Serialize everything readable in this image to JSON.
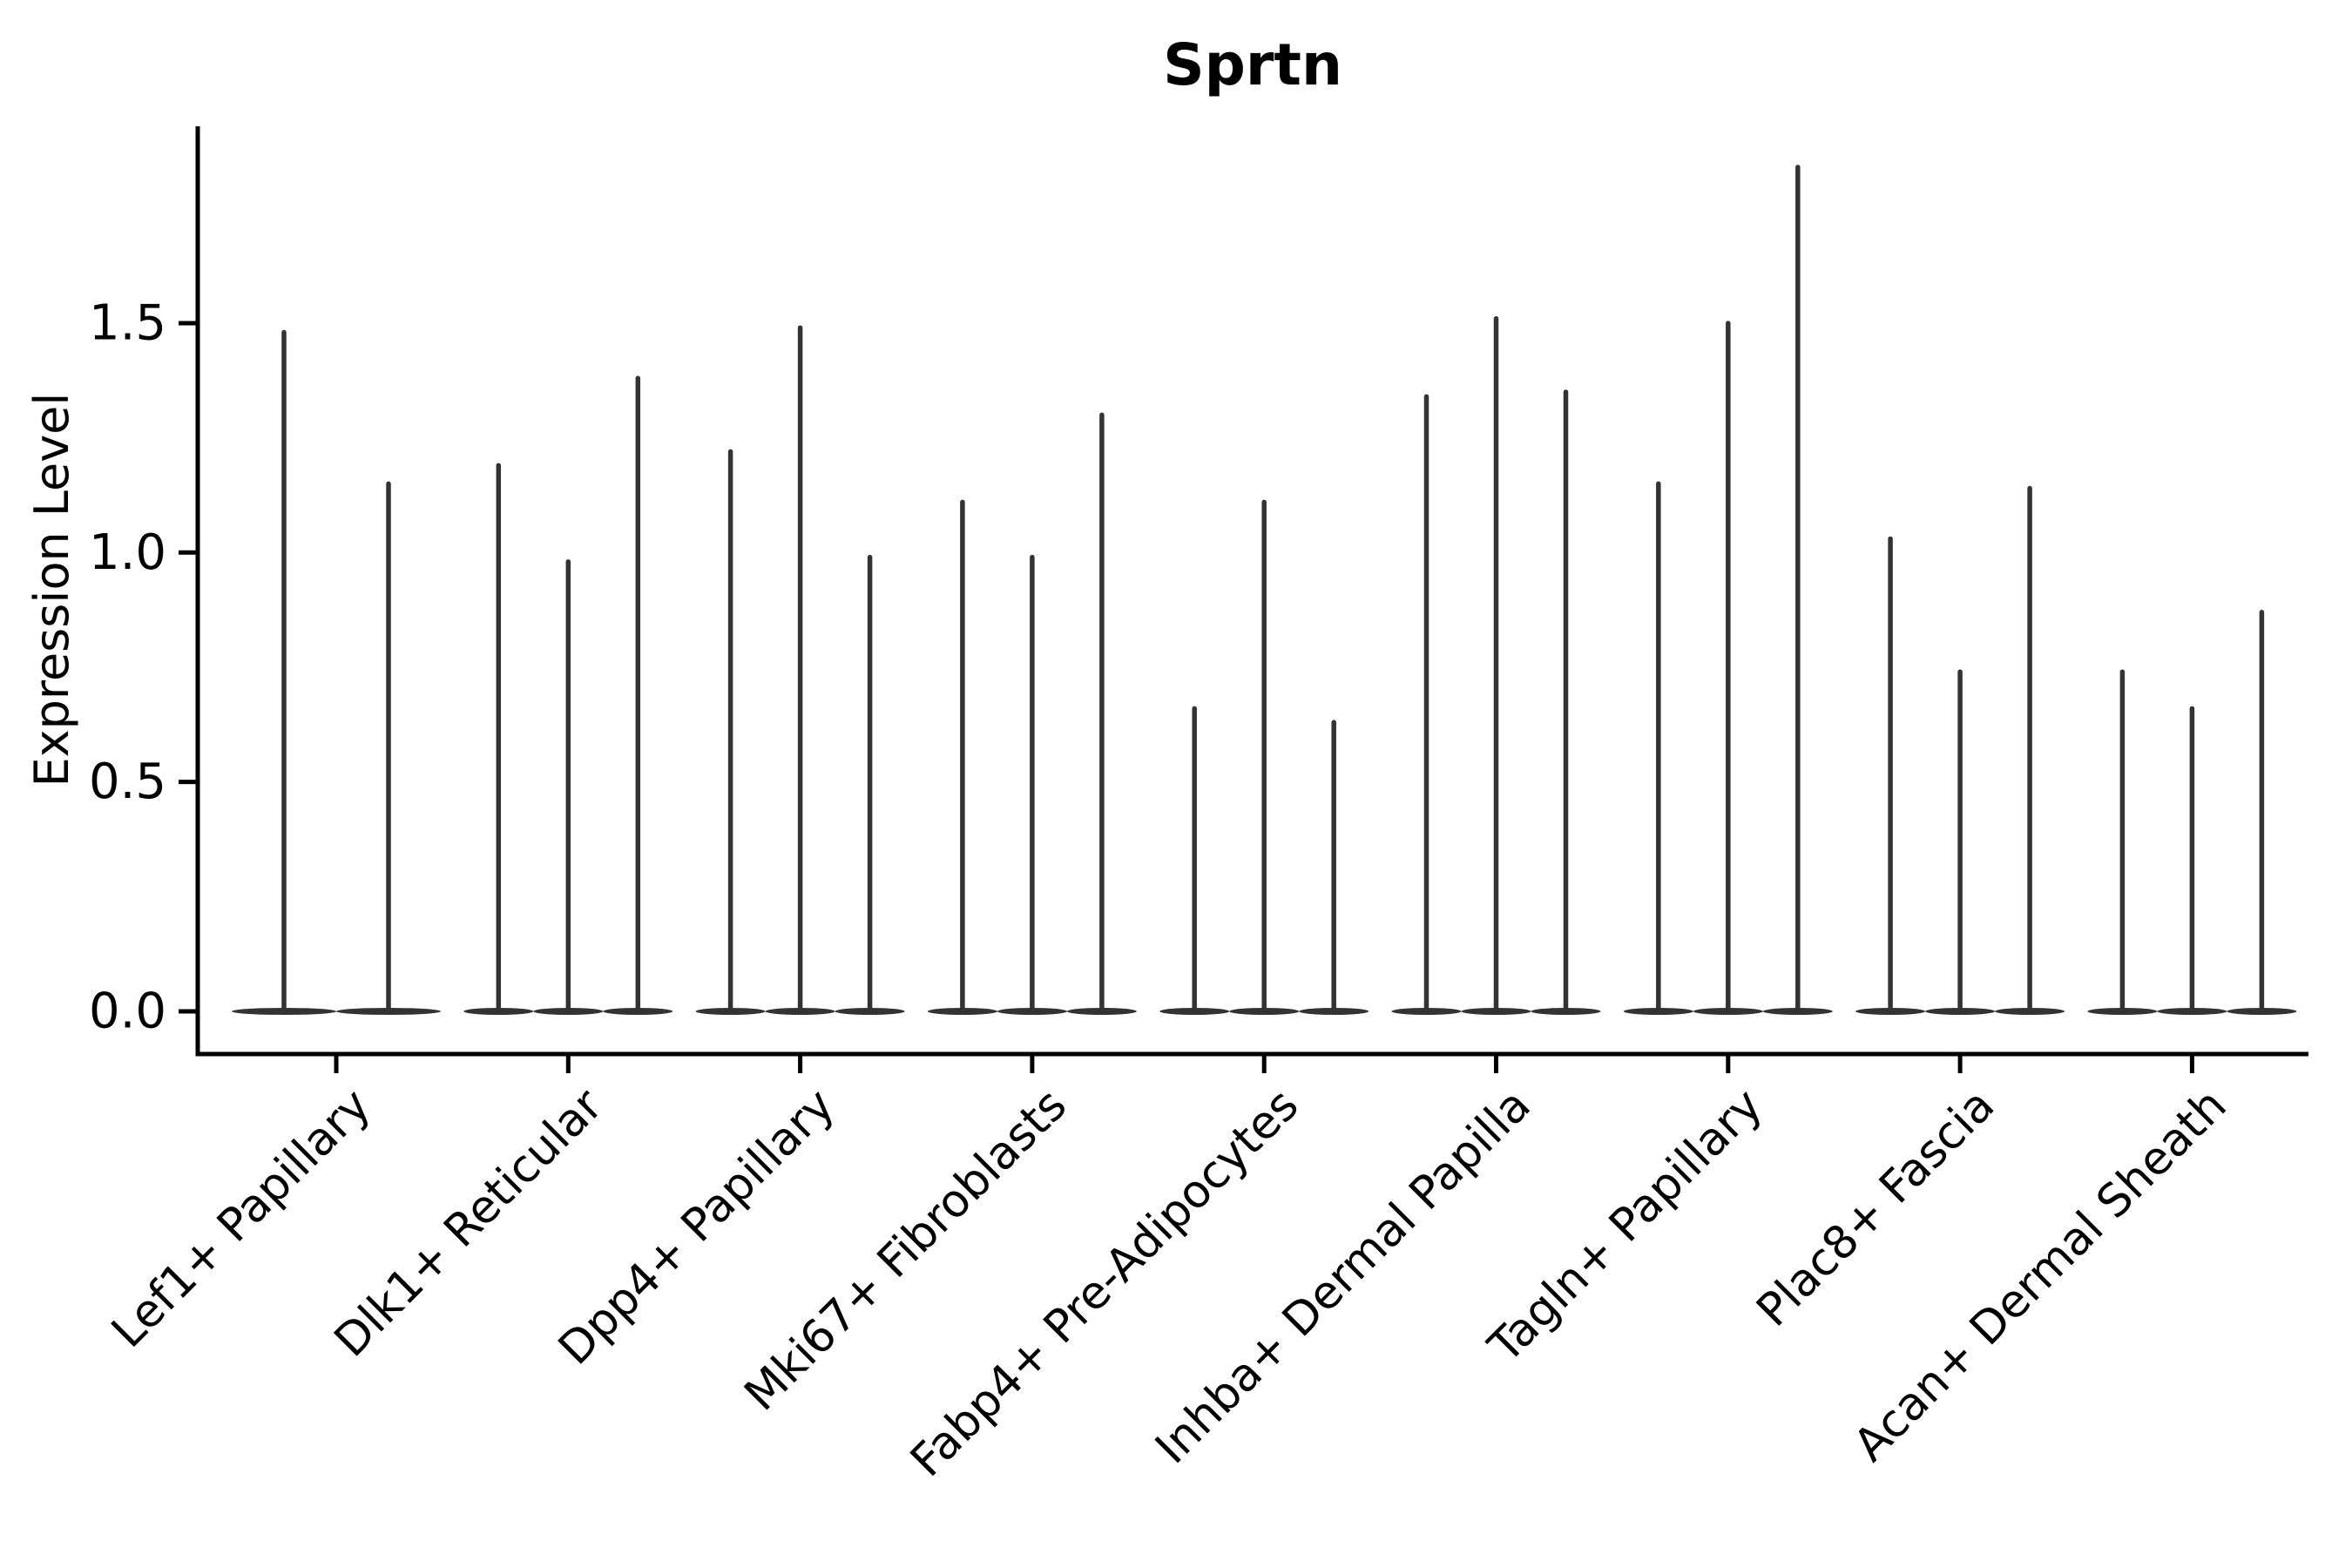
{
  "figure": {
    "title": "Sprtn"
  },
  "chart_data": {
    "type": "violin",
    "title": "Sprtn",
    "xlabel": "",
    "ylabel": "Expression Level",
    "categories": [
      "Lef1+ Papillary",
      "Dlk1+ Reticular",
      "Dpp4+ Papillary",
      "Mki67+ Fibroblasts",
      "Fabp4+ Pre-Adipocytes",
      "Inhba+ Dermal Papilla",
      "Tagln+ Papillary",
      "Plac8+ Fascia",
      "Acan+ Dermal Sheath"
    ],
    "violin_max_values": [
      [
        1.48,
        1.15
      ],
      [
        1.19,
        0.98,
        1.38
      ],
      [
        1.22,
        1.49,
        0.99
      ],
      [
        1.11,
        0.99,
        1.3
      ],
      [
        0.66,
        1.11,
        0.63
      ],
      [
        1.34,
        1.51,
        1.35
      ],
      [
        1.15,
        1.5,
        1.84
      ],
      [
        1.03,
        0.74,
        1.14
      ],
      [
        0.74,
        0.66,
        0.87
      ]
    ],
    "distribution_shape": "mass concentrated at 0 with thin tail up to max",
    "yticks": [
      0.0,
      0.5,
      1.0,
      1.5
    ],
    "ytick_labels": [
      "0.0",
      "0.5",
      "1.0",
      "1.5"
    ],
    "ylim": [
      -0.09,
      1.93
    ],
    "xtick_label_rotation_deg": 45,
    "grid": false,
    "legend": "none",
    "colors": {
      "violin": "#333333",
      "axis": "#000000",
      "text": "#000000",
      "background": "#ffffff"
    }
  }
}
